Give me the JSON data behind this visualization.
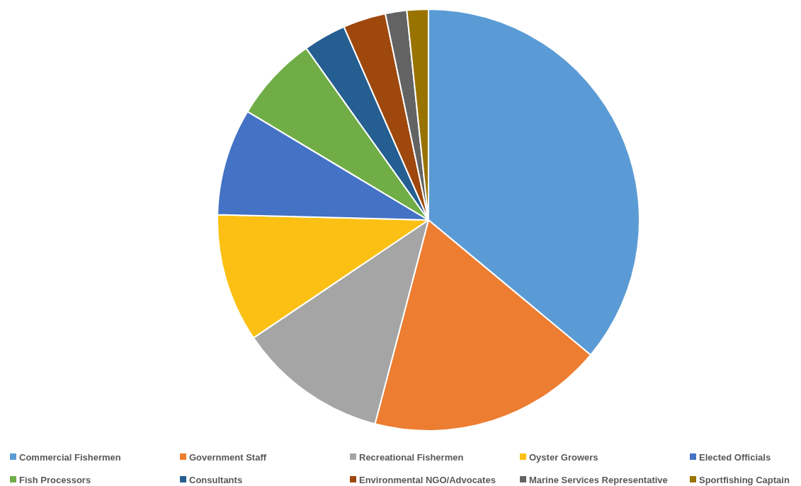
{
  "chart_data": {
    "type": "pie",
    "categories": [
      "Commercial Fishermen",
      "Government Staff",
      "Recreational Fishermen",
      "Oyster Growers",
      "Elected Officials",
      "Fish Processors",
      "Consultants",
      "Environmental NGO/Advocates",
      "Marine Services Representative",
      "Sportfishing Captain"
    ],
    "values": [
      36.05,
      18.03,
      11.48,
      9.84,
      8.2,
      6.56,
      3.28,
      3.28,
      1.64,
      1.64
    ],
    "colors": [
      "#5b9bd5",
      "#ed7d31",
      "#a5a5a5",
      "#fbc013",
      "#4472c4",
      "#70ad47",
      "#255e91",
      "#9e480e",
      "#636363",
      "#997300"
    ],
    "legend": "bottom"
  }
}
